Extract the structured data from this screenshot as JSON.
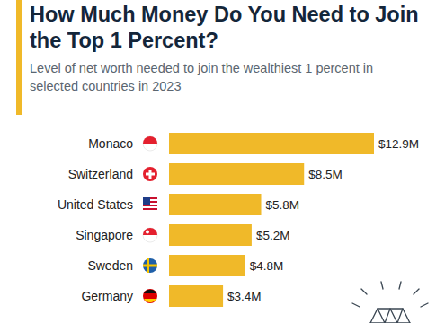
{
  "chart_data": {
    "type": "bar",
    "orientation": "horizontal",
    "title": "How Much Money Do You Need to Join the Top 1 Percent?",
    "subtitle": "Level of net worth needed to join the wealthiest 1 percent in selected countries in 2023",
    "categories": [
      "Monaco",
      "Switzerland",
      "United States",
      "Singapore",
      "Sweden",
      "Germany"
    ],
    "values": [
      12.9,
      8.5,
      5.8,
      5.2,
      4.8,
      3.4
    ],
    "value_labels": [
      "$12.9M",
      "$8.5M",
      "$5.8M",
      "$5.2M",
      "$4.8M",
      "$3.4M"
    ],
    "color": "#f0b929",
    "data_labels": true,
    "tick_labels": "y",
    "grid": false
  }
}
